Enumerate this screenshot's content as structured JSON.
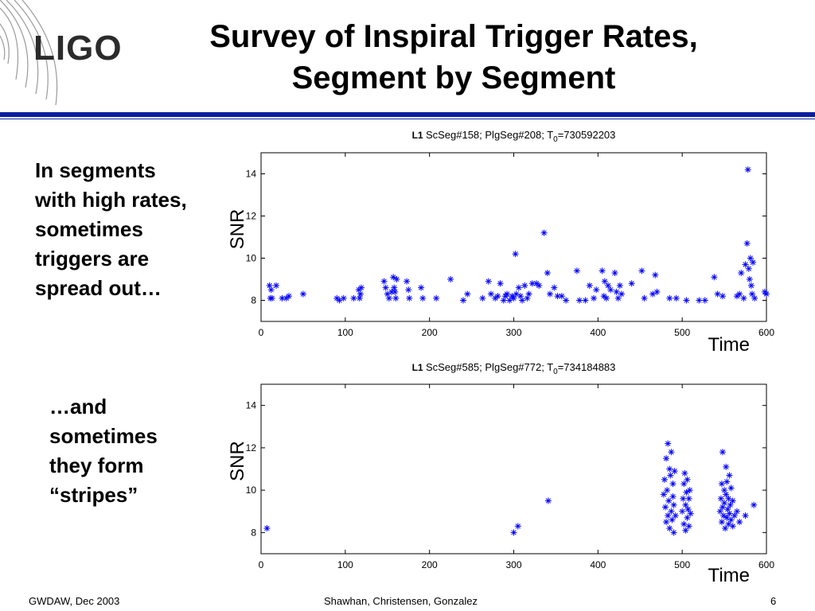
{
  "slide": {
    "logo_text": "LIGO",
    "title_line1": "Survey of Inspiral Trigger Rates,",
    "title_line2": "Segment by Segment",
    "note1_lines": [
      "In segments",
      "with high rates,",
      "sometimes",
      "triggers are",
      "spread out…"
    ],
    "note2_lines": [
      "…and",
      "sometimes",
      "they form",
      "“stripes”"
    ],
    "footer_left": "GWDAW, Dec 2003",
    "footer_center": "Shawhan, Christensen, Gonzalez",
    "footer_right": "6",
    "accent_color": "#0a1ea0"
  },
  "chart_data": [
    {
      "type": "scatter",
      "title_prefix": "L1",
      "title_text": "ScSeg#158; PlgSeg#208; T",
      "title_sub": "0",
      "title_suffix": "=730592203",
      "xlabel": "Time",
      "ylabel": "SNR",
      "xlim": [
        0,
        600
      ],
      "ylim": [
        7,
        15
      ],
      "xticks": [
        0,
        100,
        200,
        300,
        400,
        500,
        600
      ],
      "yticks": [
        8,
        10,
        12,
        14
      ],
      "marker": "asterisk",
      "color": "#0000ff",
      "grid": false,
      "points": [
        [
          10,
          8.7
        ],
        [
          12,
          8.5
        ],
        [
          11,
          8.1
        ],
        [
          18,
          8.7
        ],
        [
          13,
          8.1
        ],
        [
          25,
          8.1
        ],
        [
          30,
          8.1
        ],
        [
          33,
          8.2
        ],
        [
          50,
          8.3
        ],
        [
          90,
          8.1
        ],
        [
          93,
          8.0
        ],
        [
          98,
          8.1
        ],
        [
          110,
          8.1
        ],
        [
          116,
          8.5
        ],
        [
          118,
          8.3
        ],
        [
          117,
          8.1
        ],
        [
          119,
          8.6
        ],
        [
          146,
          8.9
        ],
        [
          148,
          8.6
        ],
        [
          150,
          8.3
        ],
        [
          152,
          8.1
        ],
        [
          155,
          8.4
        ],
        [
          157,
          9.1
        ],
        [
          158,
          8.6
        ],
        [
          159,
          8.4
        ],
        [
          160,
          8.1
        ],
        [
          161,
          9.0
        ],
        [
          173,
          8.9
        ],
        [
          175,
          8.5
        ],
        [
          176,
          8.1
        ],
        [
          190,
          8.6
        ],
        [
          192,
          8.1
        ],
        [
          208,
          8.1
        ],
        [
          225,
          9.0
        ],
        [
          240,
          8.0
        ],
        [
          245,
          8.3
        ],
        [
          263,
          8.1
        ],
        [
          270,
          8.9
        ],
        [
          273,
          8.3
        ],
        [
          278,
          8.1
        ],
        [
          281,
          8.2
        ],
        [
          284,
          8.8
        ],
        [
          288,
          8.0
        ],
        [
          290,
          8.2
        ],
        [
          292,
          8.3
        ],
        [
          295,
          8.0
        ],
        [
          298,
          8.2
        ],
        [
          300,
          8.1
        ],
        [
          303,
          8.3
        ],
        [
          306,
          8.6
        ],
        [
          302,
          10.2
        ],
        [
          308,
          8.2
        ],
        [
          310,
          8.0
        ],
        [
          313,
          8.7
        ],
        [
          316,
          8.1
        ],
        [
          318,
          8.3
        ],
        [
          322,
          8.8
        ],
        [
          327,
          8.8
        ],
        [
          330,
          8.7
        ],
        [
          336,
          11.2
        ],
        [
          340,
          9.3
        ],
        [
          343,
          8.3
        ],
        [
          348,
          8.6
        ],
        [
          352,
          8.2
        ],
        [
          357,
          8.2
        ],
        [
          362,
          8.0
        ],
        [
          375,
          9.4
        ],
        [
          378,
          8.0
        ],
        [
          385,
          8.0
        ],
        [
          390,
          8.7
        ],
        [
          395,
          8.1
        ],
        [
          398,
          8.5
        ],
        [
          405,
          9.4
        ],
        [
          408,
          8.9
        ],
        [
          407,
          8.2
        ],
        [
          410,
          8.1
        ],
        [
          412,
          8.7
        ],
        [
          415,
          8.5
        ],
        [
          420,
          9.3
        ],
        [
          422,
          8.4
        ],
        [
          424,
          8.1
        ],
        [
          426,
          8.7
        ],
        [
          428,
          8.3
        ],
        [
          440,
          8.8
        ],
        [
          452,
          9.4
        ],
        [
          455,
          8.1
        ],
        [
          465,
          8.3
        ],
        [
          468,
          9.2
        ],
        [
          470,
          8.4
        ],
        [
          485,
          8.1
        ],
        [
          493,
          8.1
        ],
        [
          505,
          8.0
        ],
        [
          520,
          8.0
        ],
        [
          527,
          8.0
        ],
        [
          538,
          9.1
        ],
        [
          542,
          8.3
        ],
        [
          548,
          8.2
        ],
        [
          565,
          8.2
        ],
        [
          568,
          8.3
        ],
        [
          570,
          9.3
        ],
        [
          573,
          8.1
        ],
        [
          575,
          9.7
        ],
        [
          577,
          10.7
        ],
        [
          578,
          14.2
        ],
        [
          579,
          9.5
        ],
        [
          580,
          9.0
        ],
        [
          581,
          10.0
        ],
        [
          582,
          8.7
        ],
        [
          583,
          8.3
        ],
        [
          584,
          9.8
        ],
        [
          586,
          8.1
        ],
        [
          598,
          8.4
        ],
        [
          600,
          8.3
        ]
      ]
    },
    {
      "type": "scatter",
      "title_prefix": "L1",
      "title_text": "ScSeg#585; PlgSeg#772; T",
      "title_sub": "0",
      "title_suffix": "=734184883",
      "xlabel": "Time",
      "ylabel": "SNR",
      "xlim": [
        0,
        600
      ],
      "ylim": [
        7,
        15
      ],
      "xticks": [
        0,
        100,
        200,
        300,
        400,
        500,
        600
      ],
      "yticks": [
        8,
        10,
        12,
        14
      ],
      "marker": "asterisk",
      "color": "#0000ff",
      "grid": false,
      "points": [
        [
          7,
          8.2
        ],
        [
          300,
          8.0
        ],
        [
          305,
          8.3
        ],
        [
          341,
          9.5
        ],
        [
          478,
          9.8
        ],
        [
          479,
          10.5
        ],
        [
          480,
          9.2
        ],
        [
          481,
          8.5
        ],
        [
          481,
          11.5
        ],
        [
          482,
          10.0
        ],
        [
          483,
          8.8
        ],
        [
          483,
          12.2
        ],
        [
          484,
          9.5
        ],
        [
          485,
          11.0
        ],
        [
          485,
          8.2
        ],
        [
          486,
          10.7
        ],
        [
          487,
          9.0
        ],
        [
          487,
          11.8
        ],
        [
          488,
          8.6
        ],
        [
          489,
          10.3
        ],
        [
          489,
          9.7
        ],
        [
          490,
          9.3
        ],
        [
          490,
          8.0
        ],
        [
          491,
          10.9
        ],
        [
          492,
          8.8
        ],
        [
          500,
          9.0
        ],
        [
          501,
          9.6
        ],
        [
          502,
          10.3
        ],
        [
          502,
          8.4
        ],
        [
          503,
          10.8
        ],
        [
          504,
          9.3
        ],
        [
          504,
          8.1
        ],
        [
          505,
          9.9
        ],
        [
          506,
          8.7
        ],
        [
          506,
          10.5
        ],
        [
          507,
          9.1
        ],
        [
          508,
          9.6
        ],
        [
          508,
          8.3
        ],
        [
          509,
          10.0
        ],
        [
          510,
          8.9
        ],
        [
          545,
          9.0
        ],
        [
          546,
          9.6
        ],
        [
          547,
          10.3
        ],
        [
          547,
          8.5
        ],
        [
          548,
          9.2
        ],
        [
          548,
          11.8
        ],
        [
          549,
          8.8
        ],
        [
          550,
          10.0
        ],
        [
          550,
          9.4
        ],
        [
          551,
          8.2
        ],
        [
          552,
          9.8
        ],
        [
          552,
          11.1
        ],
        [
          553,
          8.7
        ],
        [
          553,
          10.4
        ],
        [
          554,
          9.1
        ],
        [
          555,
          9.6
        ],
        [
          555,
          8.4
        ],
        [
          556,
          10.7
        ],
        [
          556,
          8.9
        ],
        [
          557,
          9.3
        ],
        [
          558,
          8.6
        ],
        [
          558,
          10.1
        ],
        [
          560,
          9.5
        ],
        [
          560,
          8.3
        ],
        [
          562,
          8.8
        ],
        [
          565,
          9.0
        ],
        [
          568,
          8.5
        ],
        [
          575,
          8.8
        ],
        [
          585,
          9.3
        ]
      ]
    }
  ]
}
